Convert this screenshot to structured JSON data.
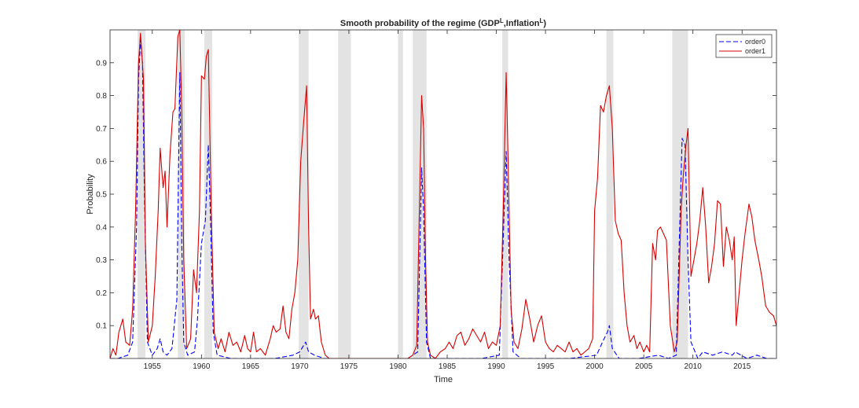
{
  "chart_data": {
    "type": "line",
    "title": {
      "prefix": "Smooth probability of the regime (GDP",
      "sup1": "L",
      "middle": ",Inflation",
      "sup2": "L",
      "suffix": ")"
    },
    "xlabel": "Time",
    "ylabel": "Probability",
    "xlim": [
      1950.7,
      2018.5
    ],
    "ylim": [
      0,
      1
    ],
    "xticks": [
      1955,
      1960,
      1965,
      1970,
      1975,
      1980,
      1985,
      1990,
      1995,
      2000,
      2005,
      2010,
      2015
    ],
    "xtick_labels": [
      "1955",
      "1960",
      "1965",
      "1970",
      "1975",
      "1980",
      "1985",
      "1990",
      "1995",
      "2000",
      "2005",
      "2010",
      "2015"
    ],
    "yticks": [
      0.1,
      0.2,
      0.3,
      0.4,
      0.5,
      0.6,
      0.7,
      0.8,
      0.9
    ],
    "ytick_labels": [
      "0.1",
      "0.2",
      "0.3",
      "0.4",
      "0.5",
      "0.6",
      "0.7",
      "0.8",
      "0.9"
    ],
    "grid": false,
    "legend_position": "top-right",
    "recession_shading": [
      [
        1953.5,
        1954.3
      ],
      [
        1957.6,
        1958.3
      ],
      [
        1960.3,
        1961.1
      ],
      [
        1969.9,
        1970.9
      ],
      [
        1973.9,
        1975.2
      ],
      [
        1980.0,
        1980.5
      ],
      [
        1981.5,
        1982.9
      ],
      [
        1990.6,
        1991.2
      ],
      [
        2001.2,
        2001.9
      ],
      [
        2007.9,
        2009.5
      ]
    ],
    "colors": {
      "order0": "#0000ff",
      "order1": "#d40000",
      "shade": "#e3e3e3"
    },
    "series": [
      {
        "name": "order0",
        "style": "dashed",
        "points": [
          [
            1950.7,
            0.0
          ],
          [
            1951.5,
            0.0
          ],
          [
            1952.5,
            0.01
          ],
          [
            1953.0,
            0.05
          ],
          [
            1953.4,
            0.4
          ],
          [
            1953.6,
            0.85
          ],
          [
            1953.8,
            0.97
          ],
          [
            1954.0,
            0.9
          ],
          [
            1954.2,
            0.5
          ],
          [
            1954.5,
            0.05
          ],
          [
            1955.0,
            0.01
          ],
          [
            1955.5,
            0.03
          ],
          [
            1955.8,
            0.06
          ],
          [
            1956.1,
            0.02
          ],
          [
            1956.5,
            0.01
          ],
          [
            1957.0,
            0.03
          ],
          [
            1957.3,
            0.12
          ],
          [
            1957.5,
            0.18
          ],
          [
            1957.8,
            0.87
          ],
          [
            1958.0,
            0.35
          ],
          [
            1958.2,
            0.05
          ],
          [
            1958.6,
            0.01
          ],
          [
            1959.3,
            0.02
          ],
          [
            1959.6,
            0.12
          ],
          [
            1960.0,
            0.35
          ],
          [
            1960.4,
            0.42
          ],
          [
            1960.7,
            0.65
          ],
          [
            1960.9,
            0.45
          ],
          [
            1961.2,
            0.08
          ],
          [
            1961.6,
            0.01
          ],
          [
            1963.0,
            0.0
          ],
          [
            1965.0,
            0.0
          ],
          [
            1967.5,
            0.0
          ],
          [
            1969.3,
            0.01
          ],
          [
            1970.0,
            0.02
          ],
          [
            1970.6,
            0.05
          ],
          [
            1970.9,
            0.02
          ],
          [
            1971.5,
            0.01
          ],
          [
            1972.5,
            0.0
          ],
          [
            1975.0,
            0.0
          ],
          [
            1978.0,
            0.0
          ],
          [
            1981.0,
            0.0
          ],
          [
            1982.0,
            0.02
          ],
          [
            1982.4,
            0.58
          ],
          [
            1982.6,
            0.45
          ],
          [
            1982.9,
            0.05
          ],
          [
            1983.3,
            0.0
          ],
          [
            1986.0,
            0.0
          ],
          [
            1988.5,
            0.0
          ],
          [
            1990.3,
            0.01
          ],
          [
            1990.8,
            0.45
          ],
          [
            1991.0,
            0.63
          ],
          [
            1991.3,
            0.3
          ],
          [
            1991.7,
            0.02
          ],
          [
            1992.5,
            0.0
          ],
          [
            1995.0,
            0.0
          ],
          [
            1997.5,
            0.0
          ],
          [
            2000.2,
            0.01
          ],
          [
            2000.8,
            0.05
          ],
          [
            2001.3,
            0.08
          ],
          [
            2001.5,
            0.1
          ],
          [
            2001.8,
            0.03
          ],
          [
            2002.5,
            0.0
          ],
          [
            2004.5,
            0.0
          ],
          [
            2006.5,
            0.01
          ],
          [
            2007.5,
            0.0
          ],
          [
            2008.3,
            0.01
          ],
          [
            2008.9,
            0.67
          ],
          [
            2009.2,
            0.65
          ],
          [
            2009.5,
            0.3
          ],
          [
            2009.8,
            0.05
          ],
          [
            2010.5,
            0.0
          ],
          [
            2011.0,
            0.02
          ],
          [
            2012.0,
            0.01
          ],
          [
            2013.0,
            0.02
          ],
          [
            2014.0,
            0.01
          ],
          [
            2014.3,
            0.02
          ],
          [
            2015.5,
            0.0
          ],
          [
            2016.5,
            0.01
          ],
          [
            2017.5,
            0.0
          ],
          [
            2018.5,
            0.0
          ]
        ]
      },
      {
        "name": "order1",
        "style": "solid",
        "points": [
          [
            1950.7,
            0.0
          ],
          [
            1951.0,
            0.03
          ],
          [
            1951.3,
            0.01
          ],
          [
            1951.6,
            0.08
          ],
          [
            1952.0,
            0.12
          ],
          [
            1952.3,
            0.05
          ],
          [
            1952.7,
            0.04
          ],
          [
            1953.0,
            0.15
          ],
          [
            1953.3,
            0.45
          ],
          [
            1953.6,
            0.9
          ],
          [
            1953.8,
            0.99
          ],
          [
            1954.1,
            0.85
          ],
          [
            1954.3,
            0.35
          ],
          [
            1954.6,
            0.05
          ],
          [
            1955.0,
            0.1
          ],
          [
            1955.3,
            0.25
          ],
          [
            1955.6,
            0.45
          ],
          [
            1955.8,
            0.64
          ],
          [
            1956.1,
            0.52
          ],
          [
            1956.3,
            0.57
          ],
          [
            1956.5,
            0.4
          ],
          [
            1956.8,
            0.62
          ],
          [
            1957.1,
            0.75
          ],
          [
            1957.3,
            0.76
          ],
          [
            1957.6,
            0.98
          ],
          [
            1957.8,
            1.0
          ],
          [
            1958.0,
            0.75
          ],
          [
            1958.2,
            0.3
          ],
          [
            1958.5,
            0.03
          ],
          [
            1958.9,
            0.06
          ],
          [
            1959.2,
            0.27
          ],
          [
            1959.5,
            0.2
          ],
          [
            1959.8,
            0.45
          ],
          [
            1960.0,
            0.86
          ],
          [
            1960.3,
            0.85
          ],
          [
            1960.5,
            0.92
          ],
          [
            1960.7,
            0.94
          ],
          [
            1961.0,
            0.45
          ],
          [
            1961.3,
            0.08
          ],
          [
            1961.7,
            0.03
          ],
          [
            1962.0,
            0.06
          ],
          [
            1962.4,
            0.02
          ],
          [
            1962.8,
            0.08
          ],
          [
            1963.2,
            0.04
          ],
          [
            1963.6,
            0.05
          ],
          [
            1964.0,
            0.02
          ],
          [
            1964.4,
            0.07
          ],
          [
            1964.7,
            0.03
          ],
          [
            1965.0,
            0.02
          ],
          [
            1965.3,
            0.08
          ],
          [
            1965.6,
            0.02
          ],
          [
            1966.0,
            0.03
          ],
          [
            1966.5,
            0.01
          ],
          [
            1967.0,
            0.06
          ],
          [
            1967.3,
            0.1
          ],
          [
            1967.6,
            0.08
          ],
          [
            1968.0,
            0.09
          ],
          [
            1968.3,
            0.16
          ],
          [
            1968.6,
            0.08
          ],
          [
            1968.9,
            0.06
          ],
          [
            1969.2,
            0.15
          ],
          [
            1969.5,
            0.2
          ],
          [
            1969.8,
            0.3
          ],
          [
            1970.1,
            0.6
          ],
          [
            1970.4,
            0.72
          ],
          [
            1970.7,
            0.83
          ],
          [
            1970.9,
            0.4
          ],
          [
            1971.1,
            0.12
          ],
          [
            1971.4,
            0.15
          ],
          [
            1971.6,
            0.12
          ],
          [
            1971.9,
            0.13
          ],
          [
            1972.2,
            0.05
          ],
          [
            1972.6,
            0.01
          ],
          [
            1973.0,
            0.0
          ],
          [
            1976.0,
            0.0
          ],
          [
            1979.0,
            0.0
          ],
          [
            1981.0,
            0.0
          ],
          [
            1981.5,
            0.01
          ],
          [
            1981.9,
            0.04
          ],
          [
            1982.2,
            0.5
          ],
          [
            1982.4,
            0.8
          ],
          [
            1982.6,
            0.7
          ],
          [
            1982.8,
            0.3
          ],
          [
            1983.0,
            0.05
          ],
          [
            1983.3,
            0.01
          ],
          [
            1983.8,
            0.0
          ],
          [
            1984.3,
            0.02
          ],
          [
            1984.8,
            0.03
          ],
          [
            1985.2,
            0.05
          ],
          [
            1985.6,
            0.03
          ],
          [
            1986.0,
            0.07
          ],
          [
            1986.4,
            0.08
          ],
          [
            1986.8,
            0.04
          ],
          [
            1987.2,
            0.06
          ],
          [
            1987.6,
            0.09
          ],
          [
            1988.0,
            0.07
          ],
          [
            1988.4,
            0.05
          ],
          [
            1988.8,
            0.08
          ],
          [
            1989.2,
            0.03
          ],
          [
            1989.6,
            0.05
          ],
          [
            1990.0,
            0.04
          ],
          [
            1990.4,
            0.1
          ],
          [
            1990.7,
            0.45
          ],
          [
            1991.0,
            0.87
          ],
          [
            1991.2,
            0.6
          ],
          [
            1991.5,
            0.15
          ],
          [
            1991.8,
            0.05
          ],
          [
            1992.2,
            0.03
          ],
          [
            1992.6,
            0.09
          ],
          [
            1993.0,
            0.18
          ],
          [
            1993.4,
            0.12
          ],
          [
            1993.8,
            0.05
          ],
          [
            1994.2,
            0.1
          ],
          [
            1994.6,
            0.13
          ],
          [
            1995.0,
            0.05
          ],
          [
            1995.4,
            0.03
          ],
          [
            1995.8,
            0.02
          ],
          [
            1996.2,
            0.04
          ],
          [
            1996.6,
            0.03
          ],
          [
            1997.0,
            0.02
          ],
          [
            1997.4,
            0.05
          ],
          [
            1997.8,
            0.02
          ],
          [
            1998.2,
            0.03
          ],
          [
            1998.6,
            0.01
          ],
          [
            1999.0,
            0.02
          ],
          [
            1999.4,
            0.03
          ],
          [
            1999.8,
            0.06
          ],
          [
            2000.0,
            0.45
          ],
          [
            2000.3,
            0.55
          ],
          [
            2000.6,
            0.77
          ],
          [
            2000.9,
            0.75
          ],
          [
            2001.2,
            0.8
          ],
          [
            2001.5,
            0.83
          ],
          [
            2001.8,
            0.7
          ],
          [
            2002.1,
            0.42
          ],
          [
            2002.4,
            0.38
          ],
          [
            2002.7,
            0.36
          ],
          [
            2003.0,
            0.2
          ],
          [
            2003.3,
            0.1
          ],
          [
            2003.6,
            0.05
          ],
          [
            2004.0,
            0.07
          ],
          [
            2004.3,
            0.03
          ],
          [
            2004.6,
            0.05
          ],
          [
            2005.0,
            0.02
          ],
          [
            2005.3,
            0.04
          ],
          [
            2005.6,
            0.02
          ],
          [
            2005.9,
            0.35
          ],
          [
            2006.2,
            0.3
          ],
          [
            2006.4,
            0.39
          ],
          [
            2006.7,
            0.4
          ],
          [
            2007.0,
            0.38
          ],
          [
            2007.3,
            0.36
          ],
          [
            2007.7,
            0.1
          ],
          [
            2008.1,
            0.02
          ],
          [
            2008.4,
            0.05
          ],
          [
            2008.8,
            0.45
          ],
          [
            2009.0,
            0.55
          ],
          [
            2009.3,
            0.65
          ],
          [
            2009.5,
            0.7
          ],
          [
            2009.8,
            0.25
          ],
          [
            2010.1,
            0.3
          ],
          [
            2010.4,
            0.35
          ],
          [
            2010.7,
            0.42
          ],
          [
            2011.0,
            0.52
          ],
          [
            2011.3,
            0.4
          ],
          [
            2011.6,
            0.23
          ],
          [
            2011.9,
            0.28
          ],
          [
            2012.2,
            0.35
          ],
          [
            2012.5,
            0.48
          ],
          [
            2012.8,
            0.47
          ],
          [
            2013.1,
            0.28
          ],
          [
            2013.4,
            0.4
          ],
          [
            2013.7,
            0.36
          ],
          [
            2014.0,
            0.3
          ],
          [
            2014.2,
            0.37
          ],
          [
            2014.4,
            0.1
          ],
          [
            2014.7,
            0.2
          ],
          [
            2015.0,
            0.3
          ],
          [
            2015.3,
            0.38
          ],
          [
            2015.7,
            0.47
          ],
          [
            2016.0,
            0.43
          ],
          [
            2016.3,
            0.36
          ],
          [
            2016.7,
            0.3
          ],
          [
            2017.0,
            0.25
          ],
          [
            2017.4,
            0.16
          ],
          [
            2017.8,
            0.14
          ],
          [
            2018.2,
            0.13
          ],
          [
            2018.5,
            0.1
          ]
        ]
      }
    ]
  }
}
